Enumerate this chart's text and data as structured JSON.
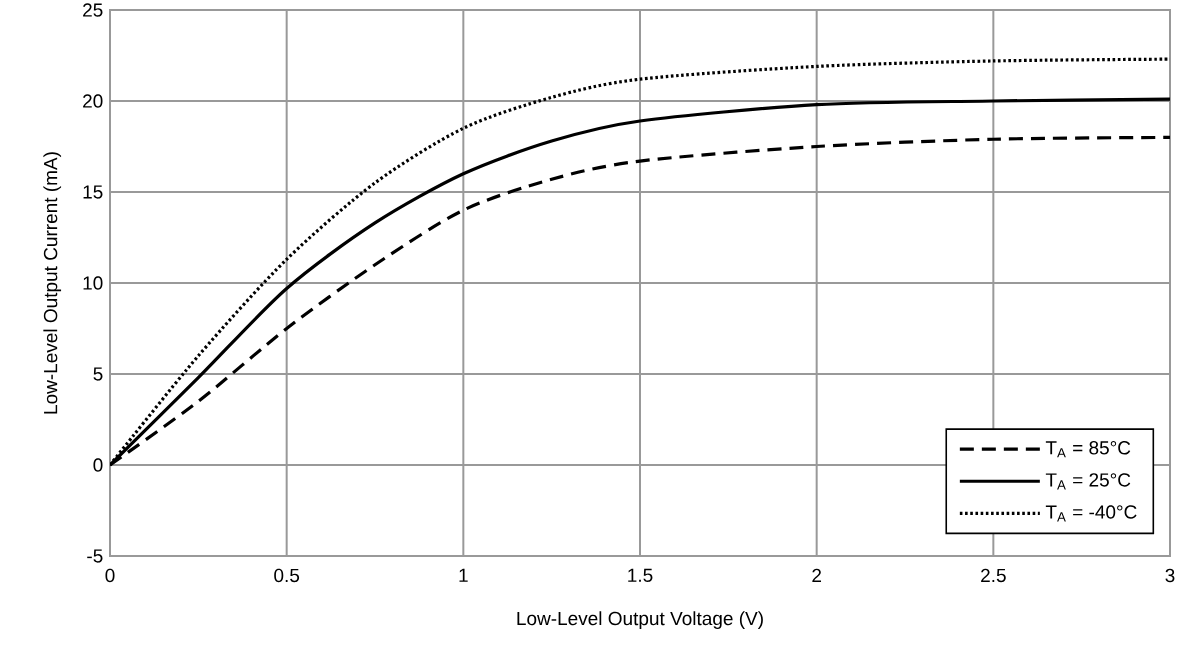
{
  "chart_data": {
    "type": "line",
    "xlabel": "Low-Level Output Voltage (V)",
    "ylabel": "Low-Level Output Current (mA)",
    "x": [
      0,
      0.25,
      0.5,
      0.75,
      1,
      1.25,
      1.5,
      2,
      2.5,
      3
    ],
    "series": [
      {
        "name": "T$_{A}$ = 85°C",
        "color": "#000000",
        "line_style": "dashed",
        "values": [
          0,
          3.5,
          7.5,
          11,
          14,
          15.7,
          16.7,
          17.5,
          17.9,
          18
        ]
      },
      {
        "name": "T$_{A}$ = 25°C",
        "color": "#000000",
        "line_style": "solid",
        "values": [
          0,
          4.8,
          9.7,
          13.3,
          16,
          17.8,
          18.9,
          19.8,
          20,
          20.1
        ]
      },
      {
        "name": "T$_{A}$ = -40°C",
        "color": "#000000",
        "line_style": "dotted",
        "values": [
          0,
          6,
          11.3,
          15.5,
          18.5,
          20.2,
          21.2,
          21.9,
          22.2,
          22.3
        ]
      }
    ],
    "xlim": [
      0,
      3
    ],
    "ylim": [
      -5,
      25
    ],
    "xticks": [
      0,
      0.5,
      1,
      1.5,
      2,
      2.5,
      3
    ],
    "yticks": [
      -5,
      0,
      5,
      10,
      15,
      20,
      25
    ],
    "grid": true,
    "legend": "bottom right",
    "marker": "none"
  }
}
